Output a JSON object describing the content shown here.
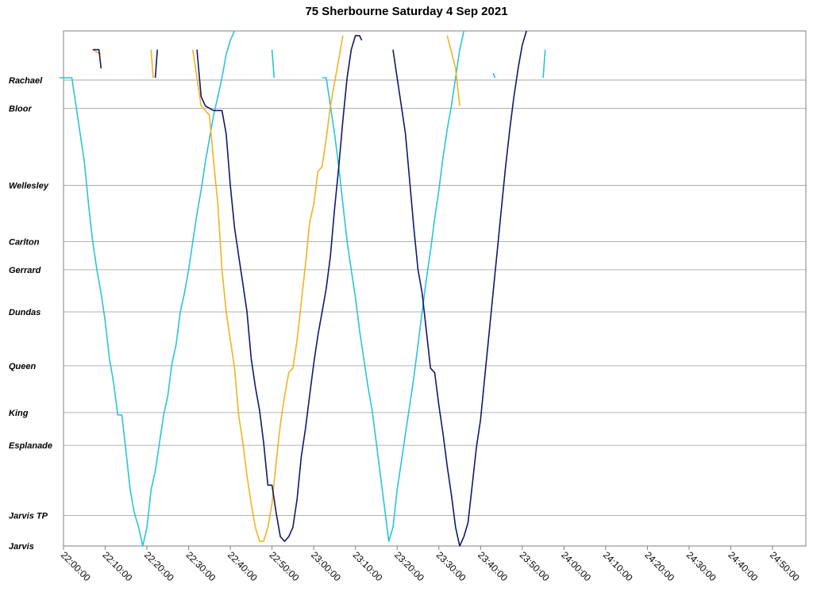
{
  "chart_data": {
    "type": "line",
    "title": "75 Sherbourne Saturday 4 Sep 2021",
    "xlabel": "",
    "ylabel": "",
    "x_ticks": [
      "22:00:00",
      "22:10:00",
      "22:20:00",
      "22:30:00",
      "22:40:00",
      "22:50:00",
      "23:00:00",
      "23:10:00",
      "23:20:00",
      "23:30:00",
      "23:40:00",
      "23:50:00",
      "24:00:00",
      "24:10:00",
      "24:20:00",
      "24:30:00",
      "24:40:00",
      "24:50:00"
    ],
    "xlim": [
      "22:00:00",
      "24:58:00"
    ],
    "stops": [
      {
        "name": "Rachael",
        "pos": 0.895
      },
      {
        "name": "Bloor",
        "pos": 0.835
      },
      {
        "name": "Wellesley",
        "pos": 0.67
      },
      {
        "name": "Carlton",
        "pos": 0.55
      },
      {
        "name": "Gerrard",
        "pos": 0.49
      },
      {
        "name": "Dundas",
        "pos": 0.4
      },
      {
        "name": "Queen",
        "pos": 0.285
      },
      {
        "name": "King",
        "pos": 0.185
      },
      {
        "name": "Esplanade",
        "pos": 0.115
      },
      {
        "name": "Jarvis TP",
        "pos": -0.035
      },
      {
        "name": "Jarvis",
        "pos": -0.1
      }
    ],
    "ylim": [
      -0.1,
      1.0
    ],
    "grid": true,
    "series": [
      {
        "color": "#29c4dc",
        "points": [
          [
            "21:59:00",
            0.9
          ],
          [
            "22:02:00",
            0.9
          ],
          [
            "22:03:00",
            0.84
          ],
          [
            "22:04:00",
            0.78
          ],
          [
            "22:05:00",
            0.72
          ],
          [
            "22:06:00",
            0.63
          ],
          [
            "22:07:00",
            0.55
          ],
          [
            "22:08:00",
            0.49
          ],
          [
            "22:09:00",
            0.44
          ],
          [
            "22:10:00",
            0.38
          ],
          [
            "22:11:00",
            0.3
          ],
          [
            "22:12:00",
            0.25
          ],
          [
            "22:13:00",
            0.18
          ],
          [
            "22:14:00",
            0.18
          ],
          [
            "22:15:00",
            0.1
          ],
          [
            "22:16:00",
            0.02
          ],
          [
            "22:17:00",
            -0.03
          ],
          [
            "22:18:00",
            -0.06
          ],
          [
            "22:19:00",
            -0.1
          ],
          [
            "22:20:00",
            -0.06
          ],
          [
            "22:21:00",
            0.02
          ],
          [
            "22:22:00",
            0.06
          ],
          [
            "22:23:00",
            0.12
          ],
          [
            "22:24:00",
            0.18
          ],
          [
            "22:25:00",
            0.22
          ],
          [
            "22:26:00",
            0.29
          ],
          [
            "22:27:00",
            0.33
          ],
          [
            "22:28:00",
            0.4
          ],
          [
            "22:29:00",
            0.44
          ],
          [
            "22:30:00",
            0.49
          ],
          [
            "22:31:00",
            0.55
          ],
          [
            "22:32:00",
            0.61
          ],
          [
            "22:33:00",
            0.66
          ],
          [
            "22:34:00",
            0.72
          ],
          [
            "22:35:00",
            0.77
          ],
          [
            "22:36:00",
            0.82
          ],
          [
            "22:37:00",
            0.86
          ],
          [
            "22:38:00",
            0.9
          ],
          [
            "22:39:00",
            0.95
          ],
          [
            "22:40:00",
            0.98
          ],
          [
            "22:41:00",
            1.0
          ]
        ]
      },
      {
        "color": "#29c4dc",
        "points": [
          [
            "22:50:00",
            0.96
          ],
          [
            "22:50:30",
            0.9
          ]
        ]
      },
      {
        "color": "#29c4dc",
        "points": [
          [
            "23:02:00",
            0.9
          ],
          [
            "23:03:00",
            0.9
          ],
          [
            "23:04:00",
            0.84
          ],
          [
            "23:05:00",
            0.78
          ],
          [
            "23:06:00",
            0.71
          ],
          [
            "23:07:00",
            0.63
          ],
          [
            "23:08:00",
            0.55
          ],
          [
            "23:09:00",
            0.49
          ],
          [
            "23:10:00",
            0.43
          ],
          [
            "23:11:00",
            0.36
          ],
          [
            "23:12:00",
            0.3
          ],
          [
            "23:13:00",
            0.24
          ],
          [
            "23:14:00",
            0.19
          ],
          [
            "23:15:00",
            0.12
          ],
          [
            "23:16:00",
            0.05
          ],
          [
            "23:17:00",
            -0.02
          ],
          [
            "23:18:00",
            -0.09
          ],
          [
            "23:19:00",
            -0.06
          ],
          [
            "23:20:00",
            0.02
          ],
          [
            "23:21:00",
            0.08
          ],
          [
            "23:22:00",
            0.14
          ],
          [
            "23:23:00",
            0.2
          ],
          [
            "23:24:00",
            0.26
          ],
          [
            "23:25:00",
            0.33
          ],
          [
            "23:26:00",
            0.4
          ],
          [
            "23:27:00",
            0.47
          ],
          [
            "23:28:00",
            0.53
          ],
          [
            "23:29:00",
            0.6
          ],
          [
            "23:30:00",
            0.66
          ],
          [
            "23:31:00",
            0.73
          ],
          [
            "23:32:00",
            0.79
          ],
          [
            "23:33:00",
            0.84
          ],
          [
            "23:34:00",
            0.9
          ],
          [
            "23:35:00",
            0.96
          ],
          [
            "23:36:00",
            1.0
          ]
        ]
      },
      {
        "color": "#29c4dc",
        "points": [
          [
            "23:43:00",
            0.91
          ],
          [
            "23:43:30",
            0.9
          ]
        ]
      },
      {
        "color": "#29c4dc",
        "points": [
          [
            "23:55:00",
            0.9
          ],
          [
            "23:55:30",
            0.96
          ]
        ]
      },
      {
        "color": "#f2b320",
        "points": [
          [
            "22:07:00",
            0.96
          ],
          [
            "22:09:00",
            0.95
          ]
        ]
      },
      {
        "color": "#f2b320",
        "points": [
          [
            "22:21:00",
            0.96
          ],
          [
            "22:21:30",
            0.9
          ]
        ]
      },
      {
        "color": "#f2b320",
        "points": [
          [
            "22:31:00",
            0.96
          ],
          [
            "22:32:00",
            0.9
          ],
          [
            "22:33:00",
            0.84
          ],
          [
            "22:35:00",
            0.82
          ],
          [
            "22:36:00",
            0.72
          ],
          [
            "22:37:00",
            0.63
          ],
          [
            "22:38:00",
            0.49
          ],
          [
            "22:39:00",
            0.4
          ],
          [
            "22:40:00",
            0.34
          ],
          [
            "22:41:00",
            0.28
          ],
          [
            "22:42:00",
            0.18
          ],
          [
            "22:43:00",
            0.12
          ],
          [
            "22:44:00",
            0.05
          ],
          [
            "22:45:00",
            -0.01
          ],
          [
            "22:46:00",
            -0.06
          ],
          [
            "22:47:00",
            -0.09
          ],
          [
            "22:48:00",
            -0.09
          ],
          [
            "22:49:00",
            -0.06
          ],
          [
            "22:50:00",
            -0.01
          ],
          [
            "22:51:00",
            0.08
          ],
          [
            "22:52:00",
            0.16
          ],
          [
            "22:53:00",
            0.22
          ],
          [
            "22:54:00",
            0.27
          ],
          [
            "22:55:00",
            0.28
          ],
          [
            "22:56:00",
            0.34
          ],
          [
            "22:57:00",
            0.42
          ],
          [
            "22:58:00",
            0.5
          ],
          [
            "22:59:00",
            0.59
          ],
          [
            "23:00:00",
            0.63
          ],
          [
            "23:01:00",
            0.7
          ],
          [
            "23:02:00",
            0.71
          ],
          [
            "23:03:00",
            0.77
          ],
          [
            "23:04:00",
            0.84
          ],
          [
            "23:05:00",
            0.89
          ],
          [
            "23:06:00",
            0.94
          ],
          [
            "23:07:00",
            0.99
          ]
        ]
      },
      {
        "color": "#f2b320",
        "points": [
          [
            "23:32:00",
            0.99
          ],
          [
            "23:34:00",
            0.92
          ],
          [
            "23:35:00",
            0.84
          ]
        ]
      },
      {
        "color": "#13186b",
        "points": [
          [
            "22:07:00",
            0.96
          ],
          [
            "22:08:30",
            0.96
          ],
          [
            "22:09:00",
            0.92
          ]
        ]
      },
      {
        "color": "#13186b",
        "points": [
          [
            "22:22:00",
            0.9
          ],
          [
            "22:22:30",
            0.96
          ]
        ]
      },
      {
        "color": "#13186b",
        "points": [
          [
            "22:32:00",
            0.96
          ],
          [
            "22:33:00",
            0.86
          ],
          [
            "22:34:00",
            0.84
          ],
          [
            "22:36:00",
            0.83
          ],
          [
            "22:38:00",
            0.83
          ],
          [
            "22:39:00",
            0.78
          ],
          [
            "22:40:00",
            0.67
          ],
          [
            "22:41:00",
            0.58
          ],
          [
            "22:42:00",
            0.52
          ],
          [
            "22:43:00",
            0.46
          ],
          [
            "22:44:00",
            0.4
          ],
          [
            "22:45:00",
            0.3
          ],
          [
            "22:46:00",
            0.24
          ],
          [
            "22:47:00",
            0.19
          ],
          [
            "22:48:00",
            0.12
          ],
          [
            "22:49:00",
            0.03
          ],
          [
            "22:50:00",
            0.03
          ],
          [
            "22:51:00",
            -0.03
          ],
          [
            "22:52:00",
            -0.08
          ],
          [
            "22:53:00",
            -0.09
          ],
          [
            "22:54:00",
            -0.08
          ],
          [
            "22:55:00",
            -0.06
          ],
          [
            "22:56:00",
            0.0
          ],
          [
            "22:57:00",
            0.09
          ],
          [
            "22:58:00",
            0.15
          ],
          [
            "22:59:00",
            0.22
          ],
          [
            "23:00:00",
            0.29
          ],
          [
            "23:01:00",
            0.35
          ],
          [
            "23:02:00",
            0.4
          ],
          [
            "23:03:00",
            0.45
          ],
          [
            "23:04:00",
            0.52
          ],
          [
            "23:05:00",
            0.62
          ],
          [
            "23:06:00",
            0.71
          ],
          [
            "23:07:00",
            0.81
          ],
          [
            "23:08:00",
            0.9
          ],
          [
            "23:09:00",
            0.96
          ],
          [
            "23:10:00",
            0.99
          ],
          [
            "23:11:00",
            0.99
          ],
          [
            "23:11:30",
            0.98
          ]
        ]
      },
      {
        "color": "#13186b",
        "points": [
          [
            "23:19:00",
            0.96
          ],
          [
            "23:20:00",
            0.9
          ],
          [
            "23:21:00",
            0.84
          ],
          [
            "23:22:00",
            0.78
          ],
          [
            "23:23:00",
            0.68
          ],
          [
            "23:24:00",
            0.58
          ],
          [
            "23:25:00",
            0.49
          ],
          [
            "23:26:00",
            0.44
          ],
          [
            "23:27:00",
            0.36
          ],
          [
            "23:28:00",
            0.28
          ],
          [
            "23:29:00",
            0.27
          ],
          [
            "23:30:00",
            0.2
          ],
          [
            "23:31:00",
            0.14
          ],
          [
            "23:32:00",
            0.07
          ],
          [
            "23:33:00",
            0.01
          ],
          [
            "23:34:00",
            -0.06
          ],
          [
            "23:35:00",
            -0.1
          ],
          [
            "23:36:00",
            -0.08
          ],
          [
            "23:37:00",
            -0.05
          ],
          [
            "23:38:00",
            0.03
          ],
          [
            "23:39:00",
            0.11
          ],
          [
            "23:40:00",
            0.17
          ],
          [
            "23:41:00",
            0.26
          ],
          [
            "23:42:00",
            0.35
          ],
          [
            "23:43:00",
            0.44
          ],
          [
            "23:44:00",
            0.53
          ],
          [
            "23:45:00",
            0.62
          ],
          [
            "23:46:00",
            0.71
          ],
          [
            "23:47:00",
            0.79
          ],
          [
            "23:48:00",
            0.86
          ],
          [
            "23:49:00",
            0.92
          ],
          [
            "23:50:00",
            0.97
          ],
          [
            "23:51:00",
            1.0
          ]
        ]
      }
    ]
  }
}
